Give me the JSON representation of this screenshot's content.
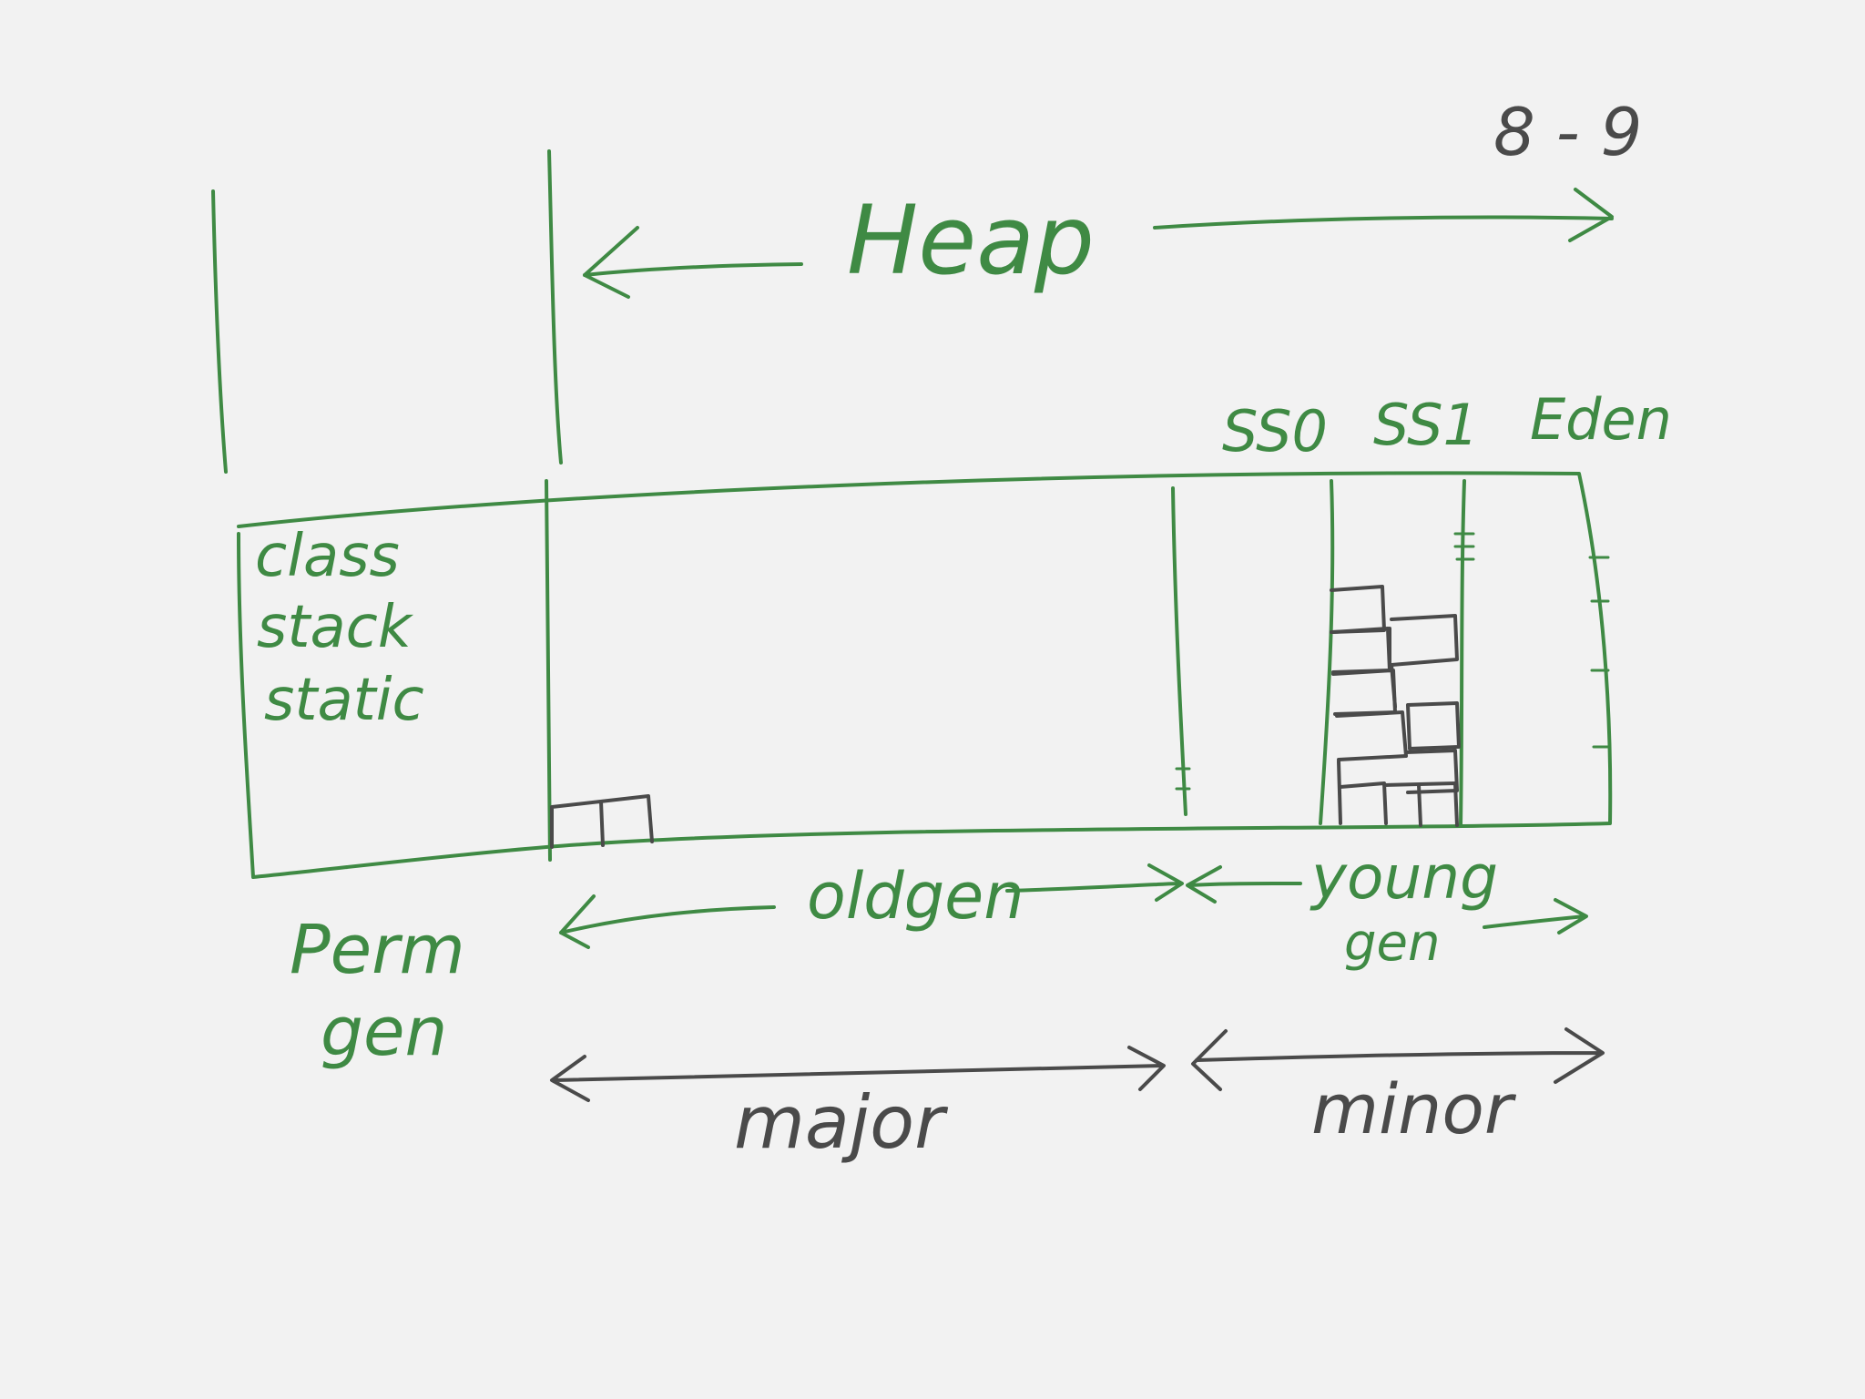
{
  "colors": {
    "background": "#f2f2f2",
    "green_ink": "#3f8a44",
    "dark_ink": "#4a4a4a"
  },
  "labels": {
    "heap": "Heap",
    "heap_size_note": "8 - 9",
    "survivor_0": "SS0",
    "survivor_1": "SS1",
    "eden": "Eden",
    "perm_contents": [
      "class",
      "stack",
      "static"
    ],
    "perm_gen_line1": "Perm",
    "perm_gen_line2": "gen",
    "old_gen": "oldgen",
    "young_gen_line1": "young",
    "young_gen_line2": "gen",
    "major": "major",
    "minor": "minor"
  }
}
